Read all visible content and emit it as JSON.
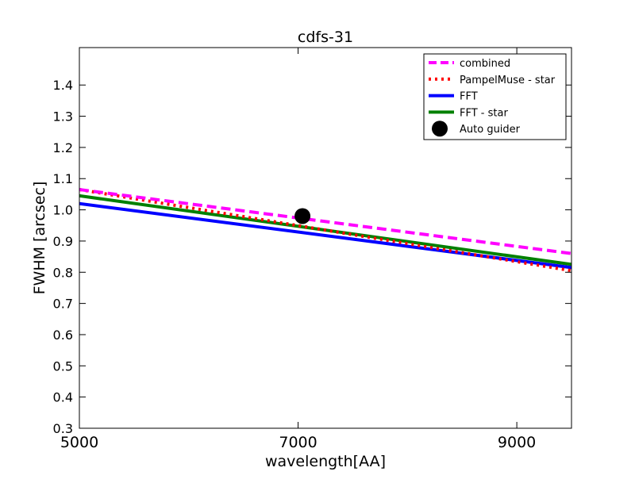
{
  "chart_data": {
    "type": "line",
    "title": "cdfs-31",
    "xlabel": "wavelength[AA]",
    "ylabel": "FWHM [arcsec]",
    "xlim": [
      5000,
      9500
    ],
    "ylim": [
      0.3,
      1.52
    ],
    "x_ticks": [
      5000,
      7000,
      9000
    ],
    "x_tick_labels": [
      "5000",
      "7000",
      "9000"
    ],
    "y_ticks": [
      0.3,
      0.4,
      0.5,
      0.6,
      0.7,
      0.8,
      0.9,
      1.0,
      1.1,
      1.2,
      1.3,
      1.4
    ],
    "y_tick_labels": [
      "0.3",
      "0.4",
      "0.5",
      "0.6",
      "0.7",
      "0.8",
      "0.9",
      "1.0",
      "1.1",
      "1.2",
      "1.3",
      "1.4"
    ],
    "grid": false,
    "legend_position": "top-right",
    "series": [
      {
        "name": "combined",
        "color": "#ff00ff",
        "style": "dashed",
        "x": [
          5000,
          9500
        ],
        "y": [
          1.065,
          0.86
        ]
      },
      {
        "name": "PampelMuse - star",
        "color": "#ff0000",
        "style": "dotted",
        "x": [
          5000,
          9500
        ],
        "y": [
          1.065,
          0.805
        ]
      },
      {
        "name": "FFT",
        "color": "#0000ff",
        "style": "solid",
        "x": [
          5000,
          9500
        ],
        "y": [
          1.02,
          0.815
        ]
      },
      {
        "name": "FFT - star",
        "color": "#008000",
        "style": "solid",
        "x": [
          5000,
          9500
        ],
        "y": [
          1.045,
          0.825
        ]
      }
    ],
    "points": [
      {
        "name": "Auto guider",
        "color": "#000000",
        "x": 7040,
        "y": 0.98
      }
    ]
  }
}
